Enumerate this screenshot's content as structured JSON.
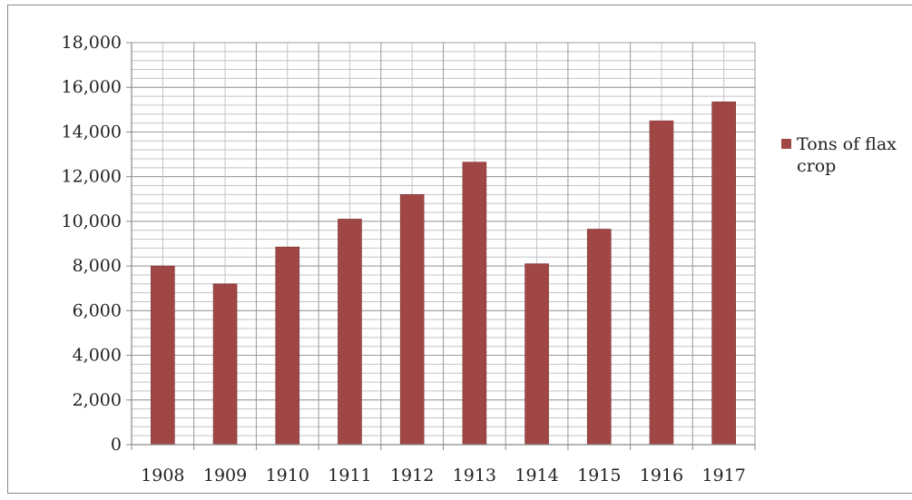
{
  "chart_data": {
    "type": "bar",
    "categories": [
      "1908",
      "1909",
      "1910",
      "1911",
      "1912",
      "1913",
      "1914",
      "1915",
      "1916",
      "1917"
    ],
    "series": [
      {
        "name": "Tons of flax crop",
        "values": [
          8000,
          7200,
          8850,
          10100,
          11200,
          12650,
          8100,
          9650,
          14500,
          15350
        ],
        "color": "#a04746"
      }
    ],
    "ylim": [
      0,
      18000
    ],
    "yticks": [
      0,
      2000,
      4000,
      6000,
      8000,
      10000,
      12000,
      14000,
      16000,
      18000
    ],
    "ytick_labels": [
      "0",
      "2,000",
      "4,000",
      "6,000",
      "8,000",
      "10,000",
      "12,000",
      "14,000",
      "16,000",
      "18,000"
    ],
    "minor_grid_step": 400,
    "grid": true,
    "legend": {
      "position": "right",
      "lines": [
        "Tons of flax",
        "crop"
      ]
    },
    "colors": {
      "bar": "#a04746",
      "bar_edge": "#7e3534",
      "major_grid": "#9a9a9a",
      "minor_grid": "#c4c4c4",
      "frame": "#8a8a8a"
    }
  }
}
